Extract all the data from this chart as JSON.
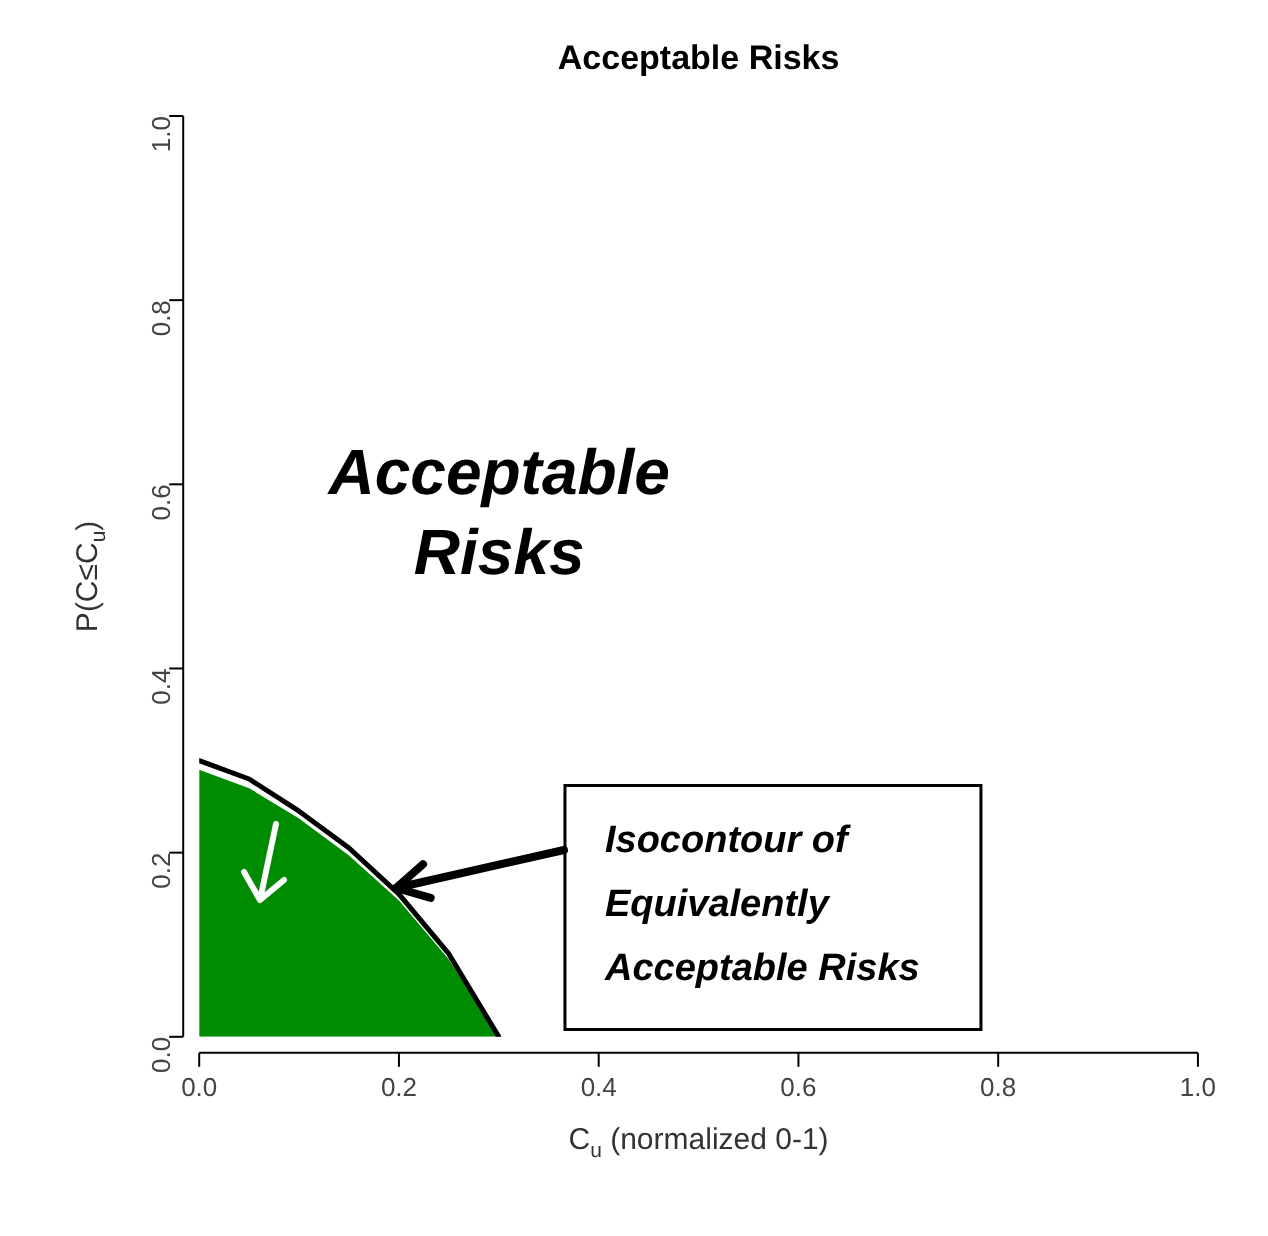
{
  "chart_data": {
    "type": "area",
    "title": "Acceptable Risks",
    "xlabel": "C$_{u}$ (normalized 0-1)",
    "ylabel": "P(C≤C$_{u}$)",
    "x": [
      0,
      0.05,
      0.1,
      0.15,
      0.2,
      0.25,
      0.3
    ],
    "series": [
      {
        "type": "area",
        "color": "#008c00",
        "values": [
          0.29,
          0.27,
          0.237,
          0.197,
          0.148,
          0.084,
          0
        ]
      },
      {
        "type": "line",
        "color": "#000000",
        "values": [
          0.3,
          0.28,
          0.245,
          0.205,
          0.155,
          0.09,
          0
        ]
      }
    ],
    "xlim": [
      0,
      1
    ],
    "ylim": [
      0,
      1
    ],
    "xticks": [
      {
        "value": 0,
        "label": "0.0"
      },
      {
        "value": 0.2,
        "label": "0.2"
      },
      {
        "value": 0.4,
        "label": "0.4"
      },
      {
        "value": 0.6,
        "label": "0.6"
      },
      {
        "value": 0.8,
        "label": "0.8"
      },
      {
        "value": 1,
        "label": "1.0"
      }
    ],
    "yticks": [
      {
        "value": 0,
        "label": "0.0"
      },
      {
        "value": 0.2,
        "label": "0.2"
      },
      {
        "value": 0.4,
        "label": "0.4"
      },
      {
        "value": 0.6,
        "label": "0.6"
      },
      {
        "value": 0.8,
        "label": "0.8"
      },
      {
        "value": 1,
        "label": "1.0"
      }
    ],
    "grid": false,
    "legend": false,
    "annotations": [
      "Acceptable Risks",
      {
        "text": "Isocontour of Equivalently Acceptable Risks",
        "x": 0.19,
        "y": 0.16
      }
    ]
  }
}
